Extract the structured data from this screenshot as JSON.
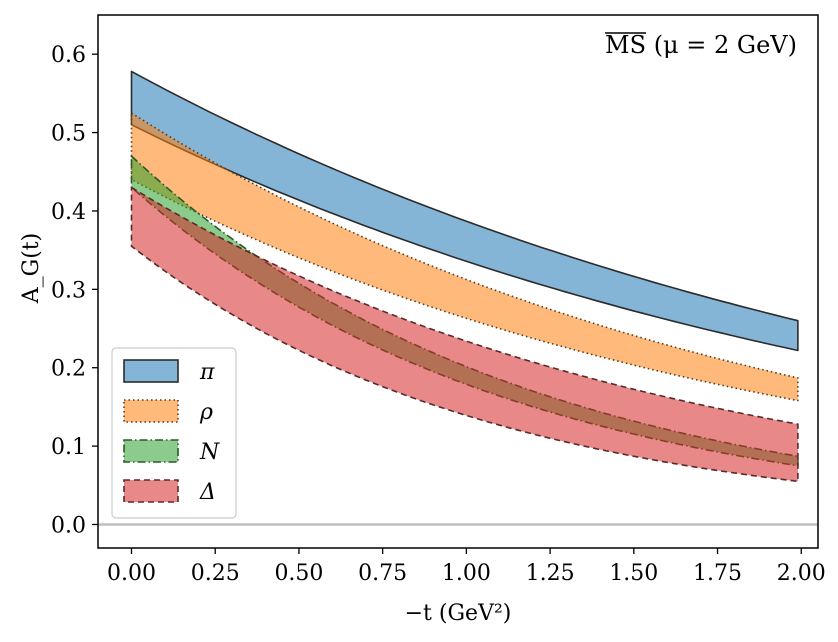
{
  "chart_data": {
    "type": "area",
    "title": "MS (μ = 2 GeV)",
    "title_overline": "MS",
    "title_rest": " (μ = 2 GeV)",
    "xlabel": "−t (GeV²)",
    "ylabel": "A_G(t)",
    "xlim": [
      -0.1,
      2.05
    ],
    "ylim": [
      -0.03,
      0.65
    ],
    "xticks": [
      0.0,
      0.25,
      0.5,
      0.75,
      1.0,
      1.25,
      1.5,
      1.75,
      2.0
    ],
    "xtick_labels": [
      "0.00",
      "0.25",
      "0.50",
      "0.75",
      "1.00",
      "1.25",
      "1.50",
      "1.75",
      "2.00"
    ],
    "yticks": [
      0.0,
      0.1,
      0.2,
      0.3,
      0.4,
      0.5,
      0.6
    ],
    "ytick_labels": [
      "0.0",
      "0.1",
      "0.2",
      "0.3",
      "0.4",
      "0.5",
      "0.6"
    ],
    "zero_line": true,
    "legend_position": "bottom-left",
    "series": [
      {
        "name": "π",
        "color": "#1f77b4",
        "edge": "#2b2b2b",
        "linestyle": "solid",
        "x_range": [
          0.0,
          1.99
        ],
        "upper": [
          0.578,
          0.26
        ],
        "lower": [
          0.51,
          0.222
        ]
      },
      {
        "name": "ρ",
        "color": "#ff7f0e",
        "edge": "#5a3a1a",
        "linestyle": "dotted",
        "x_range": [
          0.0,
          1.99
        ],
        "upper": [
          0.525,
          0.187
        ],
        "lower": [
          0.44,
          0.158
        ]
      },
      {
        "name": "N",
        "color": "#2ca02c",
        "edge": "#2b5a2b",
        "linestyle": "dashdot",
        "x_range": [
          0.0,
          1.99
        ],
        "upper": [
          0.47,
          0.087
        ],
        "lower": [
          0.43,
          0.075
        ]
      },
      {
        "name": "Δ",
        "color": "#d62728",
        "edge": "#5a2a2a",
        "linestyle": "dashed",
        "x_range": [
          0.0,
          1.99
        ],
        "upper": [
          0.43,
          0.128
        ],
        "lower": [
          0.355,
          0.055
        ]
      }
    ]
  }
}
